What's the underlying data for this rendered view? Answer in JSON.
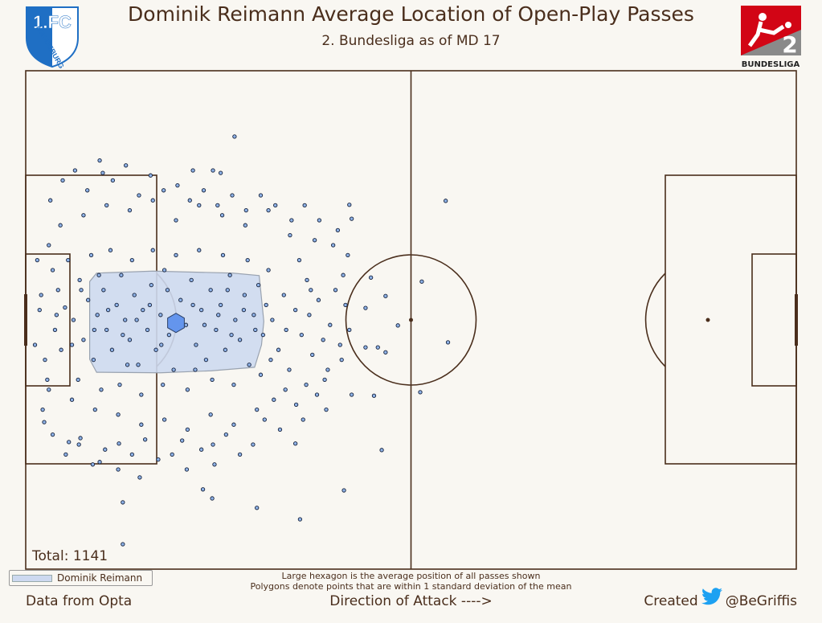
{
  "header": {
    "title": "Dominik Reimann Average Location of Open-Play Passes",
    "subtitle": "2. Bundesliga as of MD 17",
    "club_logo_text": "1.FC MAGDEBURG",
    "league_logo_text": "BUNDESLIGA",
    "league_logo_number": "2"
  },
  "footer": {
    "source": "Data from Opta",
    "direction": "Direction of Attack ---->",
    "created": "Created",
    "handle": "@BeGriffis",
    "note_line1": "Large hexagon is the average position of all passes shown",
    "note_line2": "Polygons denote points that are within 1 standard deviation of the mean"
  },
  "colors": {
    "line": "#4a2e1c",
    "point_fill": "#8fb3e8",
    "hexagon": "#6495ed",
    "polygon": "#cdd9f0",
    "twitter": "#1da1f2"
  },
  "chart_data": {
    "type": "scatter",
    "title": "Dominik Reimann Average Location of Open-Play Passes",
    "subtitle": "2. Bundesliga as of MD 17",
    "total_label": "Total: 1141",
    "total": 1141,
    "legend": [
      {
        "label": "Dominik Reimann",
        "placement": "bottom-left"
      }
    ],
    "xlim": [
      0,
      100
    ],
    "ylim": [
      0,
      100
    ],
    "mean": [
      19.5,
      50.6
    ],
    "std_polygon": [
      [
        9.2,
        40.6
      ],
      [
        16.5,
        40.2
      ],
      [
        26.9,
        40.6
      ],
      [
        30.3,
        41.1
      ],
      [
        30.9,
        50.3
      ],
      [
        30.6,
        55.0
      ],
      [
        29.7,
        59.5
      ],
      [
        24.1,
        60.2
      ],
      [
        17.5,
        60.6
      ],
      [
        9.2,
        60.5
      ],
      [
        8.3,
        57.9
      ],
      [
        8.3,
        42.3
      ]
    ],
    "points": [
      [
        27.1,
        13.2
      ],
      [
        10.0,
        20.5
      ],
      [
        54.5,
        26.1
      ],
      [
        21.7,
        20.0
      ],
      [
        24.3,
        20.0
      ],
      [
        25.3,
        20.5
      ],
      [
        44.8,
        41.5
      ],
      [
        51.4,
        42.3
      ],
      [
        46.7,
        45.2
      ],
      [
        44.1,
        47.6
      ],
      [
        48.3,
        51.1
      ],
      [
        54.8,
        54.5
      ],
      [
        44.1,
        55.5
      ],
      [
        45.7,
        55.5
      ],
      [
        46.7,
        56.5
      ],
      [
        51.2,
        64.5
      ],
      [
        45.2,
        65.2
      ],
      [
        41.3,
        84.2
      ],
      [
        35.6,
        90.0
      ],
      [
        30.0,
        87.7
      ],
      [
        24.2,
        85.8
      ],
      [
        23.0,
        84.0
      ],
      [
        14.8,
        81.6
      ],
      [
        12.6,
        86.6
      ],
      [
        12.6,
        95.0
      ],
      [
        9.6,
        78.5
      ],
      [
        5.6,
        74.5
      ],
      [
        7.1,
        73.7
      ],
      [
        2.4,
        70.5
      ],
      [
        12.1,
        74.8
      ],
      [
        20.3,
        74.2
      ],
      [
        24.3,
        75.0
      ],
      [
        35.0,
        74.8
      ],
      [
        46.2,
        76.1
      ],
      [
        42.0,
        26.9
      ],
      [
        42.3,
        29.7
      ],
      [
        3.5,
        40
      ],
      [
        4.2,
        44
      ],
      [
        5.1,
        47.5
      ],
      [
        3.8,
        52
      ],
      [
        4.6,
        56
      ],
      [
        6.2,
        50
      ],
      [
        7.0,
        42
      ],
      [
        7.5,
        54
      ],
      [
        8.1,
        46
      ],
      [
        8.8,
        58
      ],
      [
        9.3,
        49
      ],
      [
        10.1,
        44
      ],
      [
        10.5,
        52
      ],
      [
        11.2,
        56
      ],
      [
        11.8,
        47
      ],
      [
        12.4,
        41
      ],
      [
        12.9,
        50
      ],
      [
        13.5,
        54
      ],
      [
        14.1,
        45
      ],
      [
        14.6,
        59
      ],
      [
        15.2,
        48
      ],
      [
        15.8,
        52
      ],
      [
        16.3,
        43
      ],
      [
        16.9,
        56
      ],
      [
        17.5,
        49
      ],
      [
        18.0,
        40
      ],
      [
        18.6,
        53
      ],
      [
        19.2,
        60
      ],
      [
        20.1,
        46
      ],
      [
        20.8,
        51
      ],
      [
        21.5,
        42
      ],
      [
        22.1,
        55
      ],
      [
        22.8,
        48
      ],
      [
        23.4,
        58
      ],
      [
        24.0,
        44
      ],
      [
        24.7,
        52
      ],
      [
        25.3,
        47
      ],
      [
        25.9,
        56
      ],
      [
        26.5,
        41
      ],
      [
        27.2,
        50
      ],
      [
        27.8,
        54
      ],
      [
        28.4,
        45
      ],
      [
        29.0,
        59
      ],
      [
        29.6,
        49
      ],
      [
        30.2,
        43
      ],
      [
        30.8,
        53
      ],
      [
        2.0,
        45
      ],
      [
        2.5,
        58
      ],
      [
        3.0,
        35
      ],
      [
        5.5,
        38
      ],
      [
        6.8,
        62
      ],
      [
        8.5,
        37
      ],
      [
        9.8,
        64
      ],
      [
        11.0,
        36
      ],
      [
        12.2,
        63
      ],
      [
        13.8,
        38
      ],
      [
        15.0,
        65
      ],
      [
        16.5,
        36
      ],
      [
        17.8,
        63
      ],
      [
        19.5,
        37
      ],
      [
        21.0,
        64
      ],
      [
        22.5,
        36
      ],
      [
        24.2,
        62
      ],
      [
        25.6,
        37
      ],
      [
        27.0,
        63
      ],
      [
        28.8,
        38
      ],
      [
        30.5,
        61
      ],
      [
        31.5,
        40
      ],
      [
        32.0,
        50
      ],
      [
        32.8,
        56
      ],
      [
        33.5,
        45
      ],
      [
        34.2,
        60
      ],
      [
        35.0,
        48
      ],
      [
        35.8,
        53
      ],
      [
        36.5,
        42
      ],
      [
        37.2,
        57
      ],
      [
        38.0,
        46
      ],
      [
        38.8,
        62
      ],
      [
        39.5,
        51
      ],
      [
        40.2,
        44
      ],
      [
        41.0,
        58
      ],
      [
        41.8,
        37
      ],
      [
        42.3,
        65
      ],
      [
        40.5,
        32
      ],
      [
        39.0,
        68
      ],
      [
        37.5,
        34
      ],
      [
        36.0,
        70
      ],
      [
        34.5,
        30
      ],
      [
        33.0,
        72
      ],
      [
        31.5,
        28
      ],
      [
        30.0,
        68
      ],
      [
        28.5,
        31
      ],
      [
        27.0,
        71
      ],
      [
        25.5,
        29
      ],
      [
        24.0,
        69
      ],
      [
        22.5,
        27
      ],
      [
        21.0,
        72
      ],
      [
        19.5,
        30
      ],
      [
        18.0,
        70
      ],
      [
        16.5,
        26
      ],
      [
        15.0,
        71
      ],
      [
        13.5,
        28
      ],
      [
        12.0,
        69
      ],
      [
        10.5,
        27
      ],
      [
        9.0,
        68
      ],
      [
        7.5,
        29
      ],
      [
        6.0,
        66
      ],
      [
        4.5,
        31
      ],
      [
        3.0,
        64
      ],
      [
        1.5,
        38
      ],
      [
        1.2,
        55
      ],
      [
        2.2,
        68
      ],
      [
        3.2,
        26
      ],
      [
        4.8,
        22
      ],
      [
        6.4,
        20
      ],
      [
        8.0,
        24
      ],
      [
        9.6,
        18
      ],
      [
        11.3,
        22
      ],
      [
        13.0,
        19
      ],
      [
        14.7,
        25
      ],
      [
        16.2,
        21
      ],
      [
        17.9,
        24
      ],
      [
        19.7,
        23
      ],
      [
        21.3,
        26
      ],
      [
        23.1,
        24
      ],
      [
        24.9,
        27
      ],
      [
        26.8,
        25
      ],
      [
        28.6,
        28
      ],
      [
        30.5,
        25
      ],
      [
        32.4,
        27
      ],
      [
        34.3,
        33
      ],
      [
        36.2,
        27
      ],
      [
        38.1,
        30
      ],
      [
        39.9,
        35
      ],
      [
        41.2,
        41
      ],
      [
        42.0,
        52
      ],
      [
        41.5,
        47
      ],
      [
        40.8,
        55
      ],
      [
        39.2,
        60
      ],
      [
        37.8,
        65
      ],
      [
        36.4,
        63
      ],
      [
        35.1,
        67
      ],
      [
        33.7,
        64
      ],
      [
        32.2,
        66
      ],
      [
        31.0,
        70
      ],
      [
        29.5,
        75
      ],
      [
        27.8,
        77
      ],
      [
        26.0,
        73
      ],
      [
        24.5,
        79
      ],
      [
        22.8,
        76
      ],
      [
        20.9,
        80
      ],
      [
        19.0,
        77
      ],
      [
        17.2,
        78
      ],
      [
        15.5,
        74
      ],
      [
        13.8,
        77
      ],
      [
        12.0,
        80
      ],
      [
        10.3,
        76
      ],
      [
        8.7,
        79
      ],
      [
        6.9,
        75
      ],
      [
        5.2,
        77
      ],
      [
        3.5,
        73
      ],
      [
        2.8,
        62
      ],
      [
        1.8,
        48
      ],
      [
        7.2,
        44
      ],
      [
        8.9,
        52
      ],
      [
        10.7,
        48
      ],
      [
        12.6,
        53
      ],
      [
        14.4,
        50
      ],
      [
        16.1,
        47
      ],
      [
        17.6,
        55
      ],
      [
        19.8,
        50
      ],
      [
        21.7,
        47
      ],
      [
        23.2,
        51
      ],
      [
        25.0,
        49
      ],
      [
        26.7,
        53
      ],
      [
        28.3,
        48
      ],
      [
        29.8,
        52
      ],
      [
        31.2,
        47
      ],
      [
        33.8,
        52
      ],
      [
        36.8,
        49
      ],
      [
        38.6,
        54
      ],
      [
        6.0,
        55
      ],
      [
        4.0,
        49
      ],
      [
        9.5,
        41
      ],
      [
        13.2,
        59
      ],
      [
        18.4,
        44
      ],
      [
        22.0,
        60
      ],
      [
        26.2,
        44
      ],
      [
        31.8,
        58
      ],
      [
        35.5,
        38
      ],
      [
        37.0,
        44
      ]
    ]
  }
}
